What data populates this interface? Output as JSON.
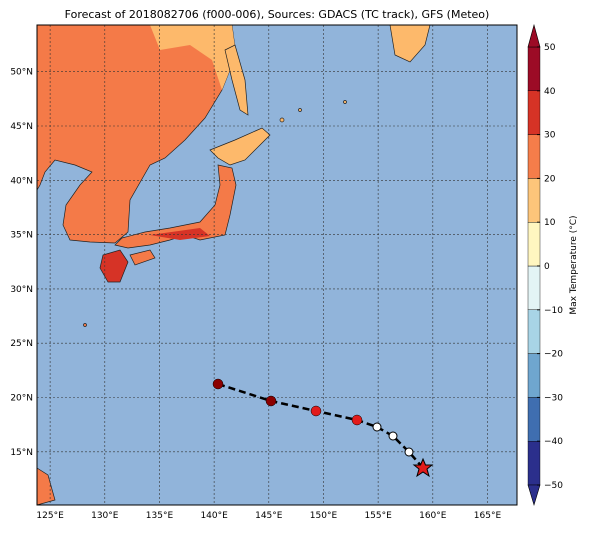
{
  "header": {
    "title": "Forecast of 2018082706 (f000-006), Sources: GDACS (TC track), GFS (Meteo)"
  },
  "map": {
    "extent_lon": [
      123.8,
      167.7
    ],
    "extent_lat": [
      10.1,
      54.3
    ],
    "lon_ticks": [
      {
        "value": 125,
        "label": "125°E"
      },
      {
        "value": 130,
        "label": "130°E"
      },
      {
        "value": 135,
        "label": "135°E"
      },
      {
        "value": 140,
        "label": "140°E"
      },
      {
        "value": 145,
        "label": "145°E"
      },
      {
        "value": 150,
        "label": "150°E"
      },
      {
        "value": 155,
        "label": "155°E"
      },
      {
        "value": 160,
        "label": "160°E"
      },
      {
        "value": 165,
        "label": "165°E"
      }
    ],
    "lat_ticks": [
      {
        "value": 15,
        "label": "15°N"
      },
      {
        "value": 20,
        "label": "20°N"
      },
      {
        "value": 25,
        "label": "25°N"
      },
      {
        "value": 30,
        "label": "30°N"
      },
      {
        "value": 35,
        "label": "35°N"
      },
      {
        "value": 40,
        "label": "40°N"
      },
      {
        "value": 45,
        "label": "45°N"
      },
      {
        "value": 50,
        "label": "50°N"
      }
    ]
  },
  "colorbar": {
    "label": "Max Temperature (°C)",
    "range": [
      -50,
      50
    ],
    "colors": [
      "#2b2f8c",
      "#3f6eb0",
      "#6fa6cf",
      "#a8d4e6",
      "#e3f4f5",
      "#fff6c0",
      "#fdc57a",
      "#f57d4a",
      "#d63326",
      "#9c0b26"
    ],
    "ticks": [
      {
        "value": -50,
        "label": "−50"
      },
      {
        "value": -40,
        "label": "−40"
      },
      {
        "value": -30,
        "label": "−30"
      },
      {
        "value": -20,
        "label": "−20"
      },
      {
        "value": -10,
        "label": "−10"
      },
      0,
      10,
      20,
      30,
      40,
      50
    ]
  }
}
